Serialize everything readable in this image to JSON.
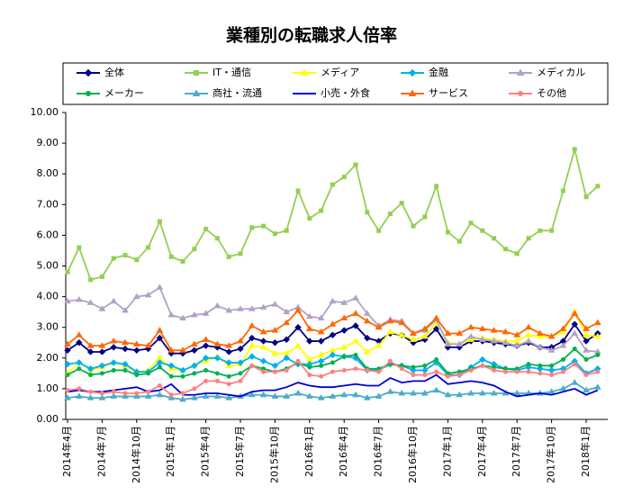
{
  "chart_data": {
    "type": "line",
    "title": "業種別の転職求人倍率",
    "categories": [
      "2014年4月",
      null,
      null,
      "2014年7月",
      null,
      null,
      "2014年10月",
      null,
      null,
      "2015年1月",
      null,
      null,
      "2015年4月",
      null,
      null,
      "2015年7月",
      null,
      null,
      "2015年10月",
      null,
      null,
      "2016年1月",
      null,
      null,
      "2016年4月",
      null,
      null,
      "2016年7月",
      null,
      null,
      "2016年10月",
      null,
      null,
      "2017年1月",
      null,
      null,
      "2017年4月",
      null,
      null,
      "2017年7月",
      null,
      null,
      "2017年10月",
      null,
      null,
      "2018年1月",
      null
    ],
    "ylim": [
      0,
      10
    ],
    "yticks": [
      {
        "value": 0,
        "label": "0.00"
      },
      {
        "value": 1,
        "label": "1.00"
      },
      {
        "value": 2,
        "label": "2.00"
      },
      {
        "value": 3,
        "label": "3.00"
      },
      {
        "value": 4,
        "label": "4.00"
      },
      {
        "value": 5,
        "label": "5.00"
      },
      {
        "value": 6,
        "label": "6.00"
      },
      {
        "value": 7,
        "label": "7.00"
      },
      {
        "value": 8,
        "label": "8.00"
      },
      {
        "value": 9,
        "label": "9.00"
      },
      {
        "value": 10,
        "label": "10.00"
      }
    ],
    "grid": false,
    "legend": "top",
    "series": [
      {
        "name": "全体",
        "color": "#000080",
        "marker": "diamond",
        "values": [
          2.25,
          2.5,
          2.2,
          2.2,
          2.35,
          2.3,
          2.25,
          2.3,
          2.65,
          2.15,
          2.15,
          2.25,
          2.4,
          2.35,
          2.2,
          2.3,
          2.65,
          2.55,
          2.5,
          2.6,
          3.0,
          2.55,
          2.55,
          2.75,
          2.9,
          3.05,
          2.65,
          2.55,
          2.8,
          2.75,
          2.5,
          2.6,
          2.95,
          2.35,
          2.35,
          2.55,
          2.55,
          2.5,
          2.45,
          2.4,
          2.5,
          2.35,
          2.35,
          2.55,
          3.1,
          2.55,
          2.8
        ]
      },
      {
        "name": "IT・通信",
        "color": "#92d050",
        "marker": "square",
        "values": [
          4.8,
          5.6,
          4.55,
          4.65,
          5.25,
          5.35,
          5.2,
          5.6,
          6.45,
          5.3,
          5.15,
          5.55,
          6.2,
          5.9,
          5.3,
          5.4,
          6.25,
          6.3,
          6.05,
          6.15,
          7.45,
          6.55,
          6.8,
          7.65,
          7.9,
          8.3,
          6.75,
          6.15,
          6.7,
          7.05,
          6.3,
          6.6,
          7.6,
          6.1,
          5.8,
          6.4,
          6.15,
          5.9,
          5.55,
          5.4,
          5.9,
          6.15,
          6.15,
          7.45,
          8.8,
          7.25,
          7.6
        ]
      },
      {
        "name": "メディア",
        "color": "#ffff00",
        "marker": "triangle",
        "values": [
          1.5,
          1.85,
          1.6,
          1.7,
          1.85,
          1.75,
          1.55,
          1.6,
          2.0,
          1.65,
          1.6,
          1.75,
          1.9,
          2.05,
          1.75,
          1.8,
          2.4,
          2.35,
          2.15,
          2.15,
          2.4,
          1.95,
          2.1,
          2.25,
          2.35,
          2.55,
          2.2,
          2.4,
          2.85,
          2.75,
          2.6,
          2.7,
          3.15,
          2.5,
          2.45,
          2.6,
          2.65,
          2.6,
          2.55,
          2.55,
          2.75,
          2.7,
          2.7,
          2.85,
          3.5,
          2.75,
          2.7
        ]
      },
      {
        "name": "金融",
        "color": "#00b0f0",
        "marker": "diamond",
        "values": [
          1.8,
          1.85,
          1.65,
          1.75,
          1.85,
          1.8,
          1.55,
          1.55,
          1.85,
          1.75,
          1.6,
          1.75,
          2.0,
          2.0,
          1.85,
          1.85,
          2.05,
          1.9,
          1.75,
          2.0,
          1.8,
          1.8,
          1.9,
          2.1,
          2.05,
          2.0,
          1.6,
          1.6,
          1.8,
          1.75,
          1.6,
          1.6,
          1.85,
          1.45,
          1.45,
          1.7,
          1.95,
          1.8,
          1.65,
          1.6,
          1.7,
          1.65,
          1.6,
          1.65,
          1.9,
          1.5,
          1.65
        ]
      },
      {
        "name": "メディカル",
        "color": "#b2a1c7",
        "marker": "triangle",
        "values": [
          3.85,
          3.9,
          3.8,
          3.6,
          3.85,
          3.55,
          4.0,
          4.05,
          4.3,
          3.4,
          3.3,
          3.4,
          3.45,
          3.7,
          3.55,
          3.6,
          3.6,
          3.65,
          3.75,
          3.5,
          3.65,
          3.35,
          3.3,
          3.85,
          3.8,
          3.95,
          3.45,
          3.05,
          3.25,
          3.2,
          2.8,
          2.9,
          3.25,
          2.45,
          2.45,
          2.7,
          2.6,
          2.55,
          2.5,
          2.4,
          2.55,
          2.35,
          2.25,
          2.4,
          2.8,
          2.25,
          2.2
        ]
      },
      {
        "name": "メーカー",
        "color": "#00b050",
        "marker": "circle",
        "values": [
          1.45,
          1.65,
          1.45,
          1.5,
          1.6,
          1.6,
          1.45,
          1.5,
          1.7,
          1.4,
          1.4,
          1.5,
          1.6,
          1.5,
          1.4,
          1.5,
          1.75,
          1.65,
          1.55,
          1.65,
          1.85,
          1.7,
          1.75,
          1.85,
          2.05,
          2.1,
          1.65,
          1.65,
          1.8,
          1.75,
          1.7,
          1.75,
          1.95,
          1.5,
          1.55,
          1.65,
          1.75,
          1.7,
          1.65,
          1.65,
          1.8,
          1.75,
          1.75,
          1.95,
          2.3,
          1.95,
          2.1
        ]
      },
      {
        "name": "商社・流通",
        "color": "#4bacc6",
        "marker": "triangle",
        "values": [
          0.7,
          0.75,
          0.7,
          0.7,
          0.75,
          0.75,
          0.75,
          0.75,
          0.8,
          0.7,
          0.65,
          0.7,
          0.75,
          0.75,
          0.7,
          0.75,
          0.8,
          0.8,
          0.75,
          0.75,
          0.85,
          0.75,
          0.7,
          0.75,
          0.8,
          0.8,
          0.7,
          0.75,
          0.9,
          0.85,
          0.85,
          0.85,
          0.95,
          0.8,
          0.8,
          0.85,
          0.85,
          0.85,
          0.85,
          0.85,
          0.85,
          0.85,
          0.9,
          1.0,
          1.2,
          0.95,
          1.05
        ]
      },
      {
        "name": "小売・外食",
        "color": "#0000cc",
        "marker": "dash",
        "values": [
          0.9,
          0.95,
          0.9,
          0.9,
          0.95,
          1.0,
          1.05,
          0.9,
          0.95,
          1.15,
          0.8,
          0.8,
          0.85,
          0.85,
          0.8,
          0.75,
          0.9,
          0.95,
          0.95,
          1.05,
          1.2,
          1.1,
          1.05,
          1.05,
          1.1,
          1.15,
          1.1,
          1.1,
          1.35,
          1.2,
          1.25,
          1.25,
          1.45,
          1.15,
          1.2,
          1.25,
          1.2,
          1.1,
          0.9,
          0.75,
          0.8,
          0.85,
          0.8,
          0.9,
          1.0,
          0.8,
          0.95
        ]
      },
      {
        "name": "サービス",
        "color": "#ff6600",
        "marker": "triangle",
        "values": [
          2.45,
          2.75,
          2.4,
          2.4,
          2.55,
          2.5,
          2.45,
          2.4,
          2.9,
          2.25,
          2.25,
          2.45,
          2.6,
          2.45,
          2.4,
          2.55,
          3.05,
          2.85,
          2.9,
          3.15,
          3.55,
          2.95,
          2.85,
          3.1,
          3.3,
          3.45,
          3.2,
          3.0,
          3.2,
          3.15,
          2.8,
          2.95,
          3.3,
          2.8,
          2.8,
          3.0,
          2.95,
          2.9,
          2.85,
          2.75,
          3.0,
          2.8,
          2.7,
          2.95,
          3.45,
          2.95,
          3.15
        ]
      },
      {
        "name": "その他",
        "color": "#ff8080",
        "marker": "circle",
        "values": [
          0.95,
          1.0,
          0.9,
          0.85,
          0.9,
          0.85,
          0.85,
          0.9,
          1.1,
          0.8,
          0.85,
          1.0,
          1.25,
          1.25,
          1.15,
          1.25,
          1.75,
          1.55,
          1.55,
          1.6,
          1.9,
          1.45,
          1.4,
          1.55,
          1.6,
          1.65,
          1.6,
          1.55,
          1.9,
          1.65,
          1.45,
          1.45,
          1.55,
          1.4,
          1.45,
          1.6,
          1.75,
          1.6,
          1.55,
          1.55,
          1.55,
          1.5,
          1.45,
          1.55,
          1.8,
          1.45,
          1.55
        ]
      }
    ]
  }
}
